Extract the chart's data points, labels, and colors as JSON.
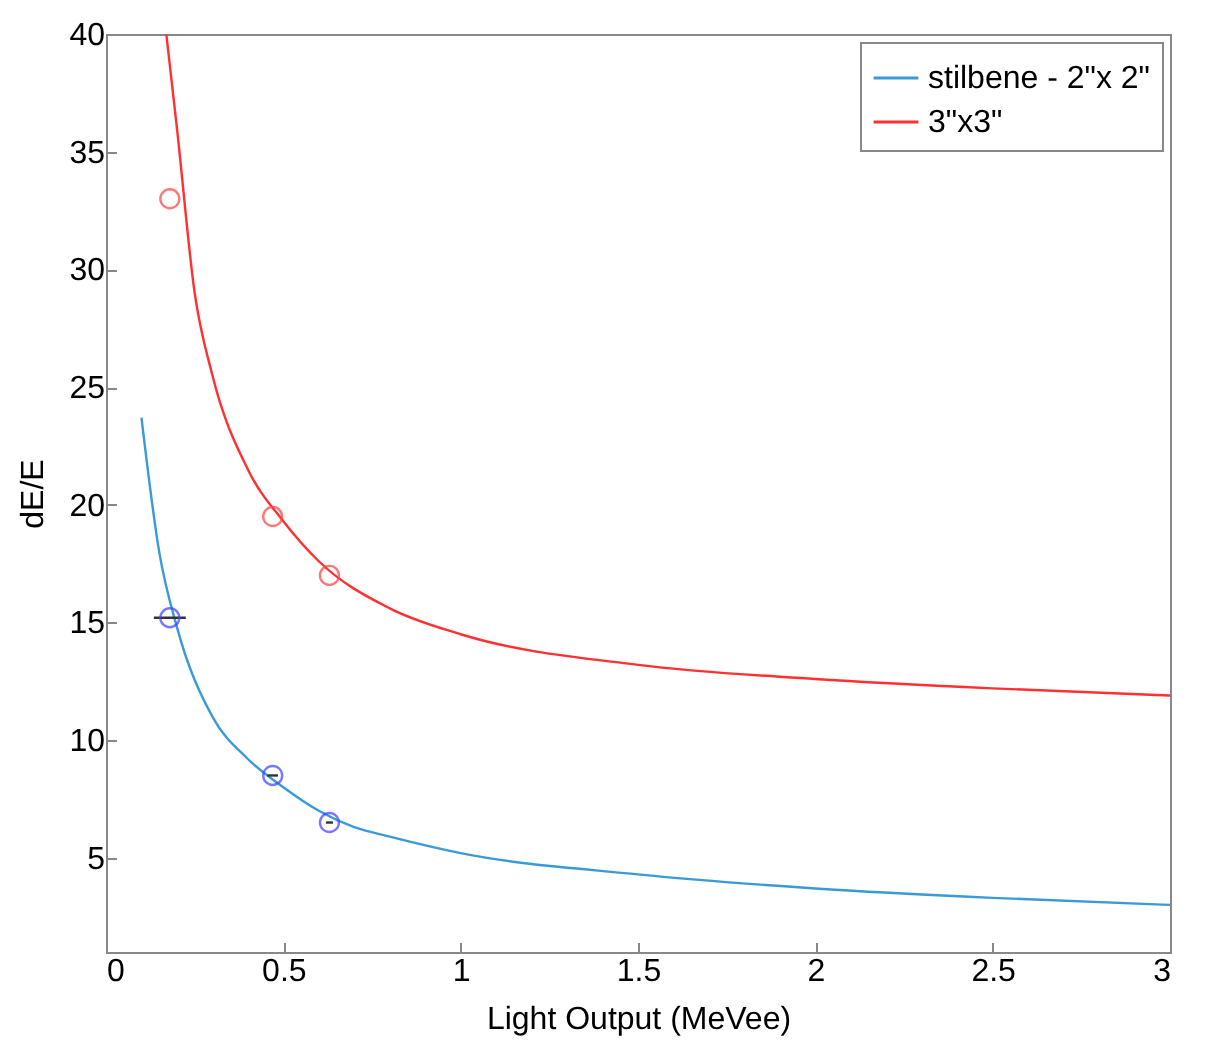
{
  "chart_data": {
    "type": "line",
    "xlabel": "Light Output (MeVee)",
    "ylabel": "dE/E",
    "xlim": [
      0,
      3
    ],
    "xticks": [
      0,
      0.5,
      1,
      1.5,
      2,
      2.5,
      3
    ],
    "ylim": [
      1,
      40
    ],
    "yticks": [
      5,
      10,
      15,
      20,
      25,
      30,
      35,
      40
    ],
    "grid": false,
    "legend": "top right",
    "series": [
      {
        "name": "stilbene - 2\"x 2\"",
        "color": "#3a9ad9",
        "x": [
          0.1,
          0.15,
          0.2,
          0.3,
          0.4,
          0.5,
          0.6,
          0.7,
          0.8,
          1,
          1.5,
          2,
          2.5,
          3
        ],
        "values": [
          23.7,
          18,
          14.8,
          11,
          9.2,
          8,
          7,
          6.3,
          5.9,
          5.2,
          4.3,
          3.7,
          3.3,
          3
        ]
      },
      {
        "name": "3\"x3\"",
        "color": "#ff3030",
        "x": [
          0.17,
          0.2,
          0.25,
          0.3,
          0.4,
          0.5,
          0.6,
          0.8,
          1,
          1.5,
          2,
          2.5,
          3
        ],
        "values": [
          40,
          36,
          29,
          25.5,
          21.5,
          19.3,
          17.6,
          15.6,
          14.5,
          13.2,
          12.6,
          12.2,
          11.9
        ]
      },
      {
        "type": "scatter",
        "marker": "circle",
        "color": "#4040ff",
        "x": [
          0.18,
          0.47,
          0.63
        ],
        "values": [
          15.2,
          8.5,
          6.5
        ],
        "xerrors": [
          0.045,
          0.015,
          0.01
        ]
      },
      {
        "type": "scatter",
        "marker": "circle",
        "color": "#ff4040",
        "x": [
          0.18,
          0.47,
          0.63
        ],
        "values": [
          33,
          19.5,
          17
        ]
      }
    ]
  }
}
